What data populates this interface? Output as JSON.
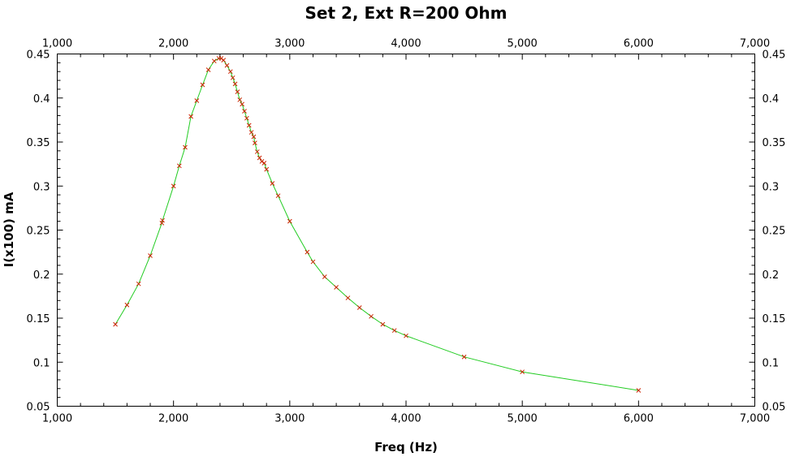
{
  "chart_data": {
    "type": "scatter",
    "title": "Set 2, Ext R=200 Ohm",
    "xlabel": "Freq (Hz)",
    "ylabel": "I(x100) mA",
    "xlim": [
      1000,
      7000
    ],
    "ylim": [
      0.05,
      0.45
    ],
    "x_ticks": [
      1000,
      2000,
      3000,
      4000,
      5000,
      6000,
      7000
    ],
    "x_tick_labels": [
      "1,000",
      "2,000",
      "3,000",
      "4,000",
      "5,000",
      "6,000",
      "7,000"
    ],
    "y_ticks": [
      0.05,
      0.1,
      0.15,
      0.2,
      0.25,
      0.3,
      0.35,
      0.4,
      0.45
    ],
    "y_tick_labels": [
      "0.05",
      "0.1",
      "0.15",
      "0.2",
      "0.25",
      "0.3",
      "0.35",
      "0.4",
      "0.45"
    ],
    "grid": false,
    "legend": "none",
    "series": [
      {
        "line_color": "#22cc22",
        "marker_color": "#cc2200",
        "x": [
          1500,
          1600,
          1700,
          1800,
          1900,
          1905,
          2000,
          2050,
          2100,
          2150,
          2200,
          2250,
          2300,
          2350,
          2390,
          2410,
          2430,
          2460,
          2490,
          2510,
          2530,
          2550,
          2570,
          2590,
          2610,
          2630,
          2650,
          2670,
          2690,
          2700,
          2720,
          2740,
          2760,
          2780,
          2800,
          2850,
          2900,
          3000,
          3150,
          3200,
          3300,
          3400,
          3500,
          3600,
          3700,
          3800,
          3900,
          4000,
          4500,
          5000,
          6000
        ],
        "y": [
          0.143,
          0.165,
          0.189,
          0.221,
          0.258,
          0.261,
          0.3,
          0.323,
          0.344,
          0.379,
          0.397,
          0.415,
          0.432,
          0.442,
          0.445,
          0.445,
          0.443,
          0.437,
          0.43,
          0.423,
          0.416,
          0.407,
          0.398,
          0.393,
          0.385,
          0.377,
          0.369,
          0.361,
          0.356,
          0.349,
          0.339,
          0.332,
          0.328,
          0.326,
          0.319,
          0.303,
          0.289,
          0.26,
          0.225,
          0.214,
          0.197,
          0.185,
          0.173,
          0.162,
          0.152,
          0.143,
          0.136,
          0.13,
          0.106,
          0.089,
          0.068
        ]
      }
    ]
  }
}
